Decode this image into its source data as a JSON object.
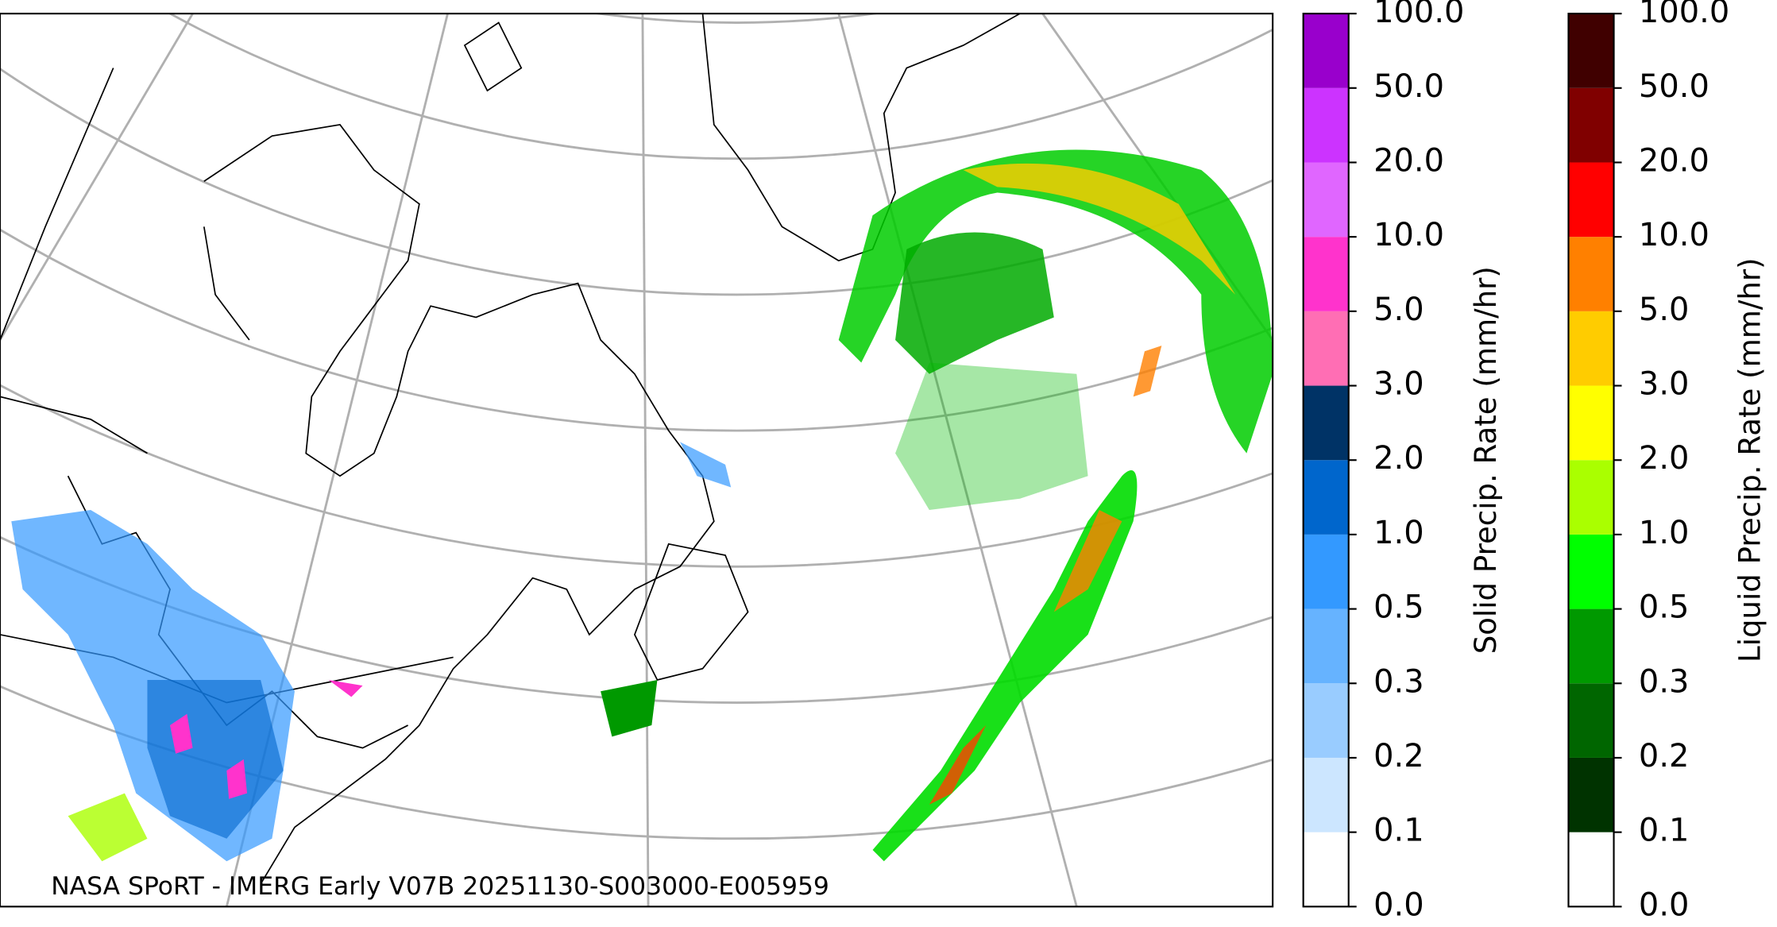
{
  "map": {
    "caption": "NASA SPoRT - IMERG Early V07B 20251130-S003000-E005959"
  },
  "colorbars": [
    {
      "label": "Solid Precip. Rate (mm/hr)",
      "ticks": [
        {
          "value": 0,
          "label": "0.0"
        },
        {
          "value": 0.1,
          "label": "0.1"
        },
        {
          "value": 0.2,
          "label": "0.2"
        },
        {
          "value": 0.3,
          "label": "0.3"
        },
        {
          "value": 0.5,
          "label": "0.5"
        },
        {
          "value": 1,
          "label": "1.0"
        },
        {
          "value": 2,
          "label": "2.0"
        },
        {
          "value": 3,
          "label": "3.0"
        },
        {
          "value": 5,
          "label": "5.0"
        },
        {
          "value": 10,
          "label": "10.0"
        },
        {
          "value": 20,
          "label": "20.0"
        },
        {
          "value": 50,
          "label": "50.0"
        },
        {
          "value": 100,
          "label": "100.0"
        }
      ],
      "colors": [
        "#ffffff",
        "#cce6ff",
        "#99ccff",
        "#66b3ff",
        "#3399ff",
        "#0066cc",
        "#003366",
        "#ff6eb4",
        "#ff33cc",
        "#e066ff",
        "#cc33ff",
        "#9900cc"
      ]
    },
    {
      "label": "Liquid Precip. Rate (mm/hr)",
      "ticks": [
        {
          "value": 0,
          "label": "0.0"
        },
        {
          "value": 0.1,
          "label": "0.1"
        },
        {
          "value": 0.2,
          "label": "0.2"
        },
        {
          "value": 0.3,
          "label": "0.3"
        },
        {
          "value": 0.5,
          "label": "0.5"
        },
        {
          "value": 1,
          "label": "1.0"
        },
        {
          "value": 2,
          "label": "2.0"
        },
        {
          "value": 3,
          "label": "3.0"
        },
        {
          "value": 5,
          "label": "5.0"
        },
        {
          "value": 10,
          "label": "10.0"
        },
        {
          "value": 20,
          "label": "20.0"
        },
        {
          "value": 50,
          "label": "50.0"
        },
        {
          "value": 100,
          "label": "100.0"
        }
      ],
      "colors": [
        "#ffffff",
        "#003300",
        "#006600",
        "#009900",
        "#00ff00",
        "#aaff00",
        "#ffff00",
        "#ffcc00",
        "#ff8000",
        "#ff0000",
        "#800000",
        "#400000"
      ]
    }
  ]
}
